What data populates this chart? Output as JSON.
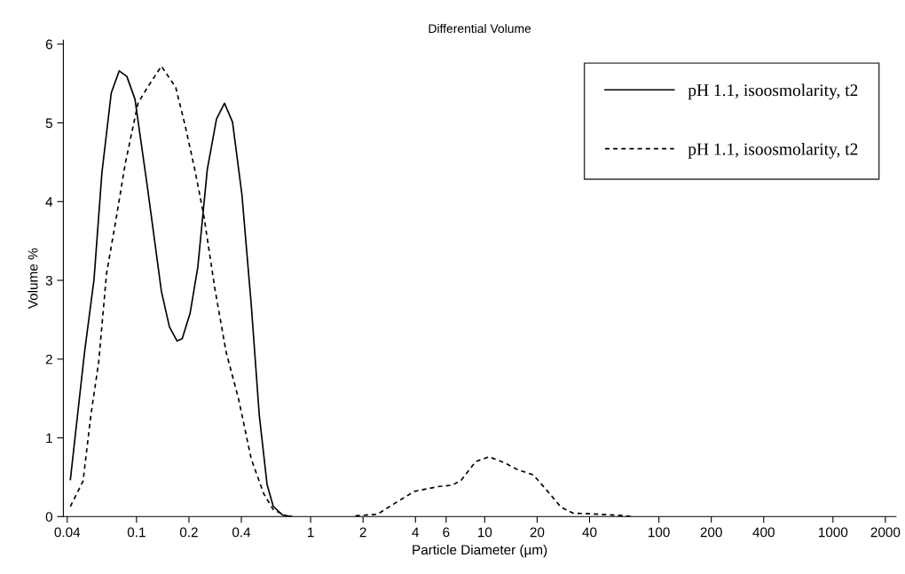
{
  "chart_data": {
    "type": "line",
    "title": "Differential Volume",
    "xlabel": "Particle Diameter (µm)",
    "ylabel": "Volume %",
    "log": "x",
    "xlim": [
      0.038,
      2300
    ],
    "xticks": [
      0.04,
      0.1,
      0.2,
      0.4,
      1,
      2,
      4,
      6,
      10,
      20,
      40,
      100,
      200,
      400,
      1000,
      2000
    ],
    "ylim": [
      0,
      6.05
    ],
    "yticks": [
      0,
      1,
      2,
      3,
      4,
      5,
      6
    ],
    "grid": false,
    "legend": "top right",
    "marker": "none",
    "series": [
      {
        "name": "pH 1.1, isoosmolarity, t2",
        "color": "#000000",
        "line_style": "solid",
        "x": [
          0.0417,
          0.0503,
          0.057,
          0.0633,
          0.0716,
          0.0795,
          0.088,
          0.098,
          0.1156,
          0.139,
          0.1545,
          0.171,
          0.183,
          0.203,
          0.225,
          0.255,
          0.288,
          0.32,
          0.356,
          0.403,
          0.456,
          0.507,
          0.562,
          0.61,
          0.69,
          0.78
        ],
        "values": [
          0.47,
          2.09,
          3.01,
          4.37,
          5.38,
          5.66,
          5.59,
          5.3,
          4.18,
          2.86,
          2.41,
          2.23,
          2.26,
          2.58,
          3.17,
          4.41,
          5.05,
          5.25,
          5.01,
          4.09,
          2.69,
          1.29,
          0.41,
          0.13,
          0.02,
          0
        ]
      },
      {
        "name": "pH 1.1, isoosmolarity, t2",
        "color": "#000000",
        "line_style": "dashed",
        "x": [
          0.0417,
          0.0493,
          0.0547,
          0.0607,
          0.0673,
          0.0762,
          0.0863,
          0.102,
          0.1156,
          0.139,
          0.168,
          0.19,
          0.216,
          0.244,
          0.282,
          0.327,
          0.386,
          0.456,
          0.538,
          0.61,
          0.72,
          1.2,
          1.81,
          2.42,
          3.0,
          3.94,
          5.37,
          6.52,
          7.31,
          8.89,
          10.6,
          13.1,
          15.3,
          19.0,
          22.6,
          27.4,
          32,
          45.4,
          64.4,
          70
        ],
        "values": [
          0.13,
          0.45,
          1.29,
          1.97,
          3.09,
          3.77,
          4.49,
          5.25,
          5.45,
          5.72,
          5.45,
          4.97,
          4.41,
          3.81,
          2.89,
          2.09,
          1.49,
          0.73,
          0.29,
          0.09,
          0.01,
          null,
          0.01,
          0.03,
          0.16,
          0.32,
          0.38,
          0.4,
          0.46,
          0.7,
          0.76,
          0.68,
          0.6,
          0.53,
          0.34,
          0.12,
          0.045,
          0.03,
          0.01,
          0
        ]
      }
    ]
  }
}
